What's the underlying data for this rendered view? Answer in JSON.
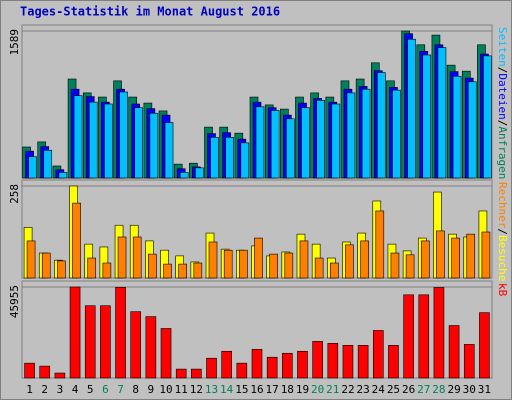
{
  "chart_data": {
    "type": "bar",
    "title": "Tages-Statistik im Monat August 2016",
    "categories": [
      "1",
      "2",
      "3",
      "4",
      "5",
      "6",
      "7",
      "8",
      "9",
      "10",
      "11",
      "12",
      "13",
      "14",
      "15",
      "16",
      "17",
      "18",
      "19",
      "20",
      "21",
      "22",
      "23",
      "24",
      "25",
      "26",
      "27",
      "28",
      "29",
      "30",
      "31"
    ],
    "category_colors": [
      "#000000",
      "#000000",
      "#000000",
      "#000000",
      "#000000",
      "#00805c",
      "#00805c",
      "#000000",
      "#000000",
      "#000000",
      "#000000",
      "#000000",
      "#00805c",
      "#00805c",
      "#000000",
      "#000000",
      "#000000",
      "#000000",
      "#000000",
      "#00805c",
      "#00805c",
      "#000000",
      "#000000",
      "#000000",
      "#000000",
      "#000000",
      "#00805c",
      "#00805c",
      "#000000",
      "#000000",
      "#000000"
    ],
    "legend_separator": "/",
    "panels": [
      {
        "ylim": [
          0,
          1589
        ],
        "yticks": [
          1589
        ],
        "series": [
          {
            "name": "Anfragen",
            "color": "#00805c",
            "values": [
              335,
              390,
              130,
              1070,
              920,
              875,
              1050,
              875,
              810,
              725,
              150,
              160,
              550,
              550,
              485,
              875,
              790,
              745,
              875,
              920,
              875,
              1050,
              1070,
              1245,
              1050,
              1589,
              1440,
              1545,
              1220,
              1155,
              1440
            ]
          },
          {
            "name": "Dateien",
            "color": "#0000ff",
            "values": [
              290,
              340,
              90,
              960,
              880,
              820,
              960,
              800,
              750,
              680,
              100,
              120,
              480,
              490,
              420,
              820,
              760,
              680,
              810,
              860,
              820,
              960,
              990,
              1160,
              980,
              1560,
              1370,
              1440,
              1150,
              1080,
              1340
            ]
          },
          {
            "name": "Seiten",
            "color": "#00c0ff",
            "values": [
              230,
              300,
              60,
              890,
              820,
              800,
              930,
              760,
              700,
              600,
              60,
              110,
              440,
              440,
              380,
              770,
              730,
              640,
              760,
              840,
              800,
              920,
              960,
              1140,
              950,
              1500,
              1330,
              1410,
              1100,
              1040,
              1320
            ]
          }
        ]
      },
      {
        "ylim": [
          0,
          258
        ],
        "yticks": [
          258
        ],
        "series": [
          {
            "name": "Besuche",
            "color": "#ffff00",
            "values": [
              142,
              70,
              50,
              258,
              95,
              87,
              148,
              148,
              104,
              78,
              62,
              45,
              126,
              81,
              78,
              90,
              62,
              73,
              123,
              95,
              56,
              101,
              126,
              216,
              95,
              76,
              112,
              241,
              123,
              115,
              188
            ]
          },
          {
            "name": "Rechner",
            "color": "#ff8000",
            "values": [
              104,
              70,
              48,
              210,
              56,
              42,
              115,
              115,
              67,
              39,
              39,
              42,
              101,
              78,
              78,
              112,
              67,
              70,
              104,
              56,
              42,
              93,
              104,
              188,
              70,
              65,
              104,
              132,
              112,
              123,
              129
            ]
          }
        ]
      },
      {
        "ylim": [
          0,
          45955
        ],
        "yticks": [
          45955
        ],
        "series": [
          {
            "name": "kB",
            "color": "#ff0000",
            "values": [
              7490,
              6000,
              2500,
              45955,
              36500,
              36500,
              45800,
              33500,
              31000,
              25000,
              4500,
              4500,
              10000,
              13500,
              7500,
              14500,
              10500,
              12500,
              13500,
              18500,
              17500,
              16500,
              16500,
              24000,
              16500,
              42000,
              42000,
              45700,
              26500,
              17000,
              33000
            ]
          }
        ]
      }
    ]
  }
}
